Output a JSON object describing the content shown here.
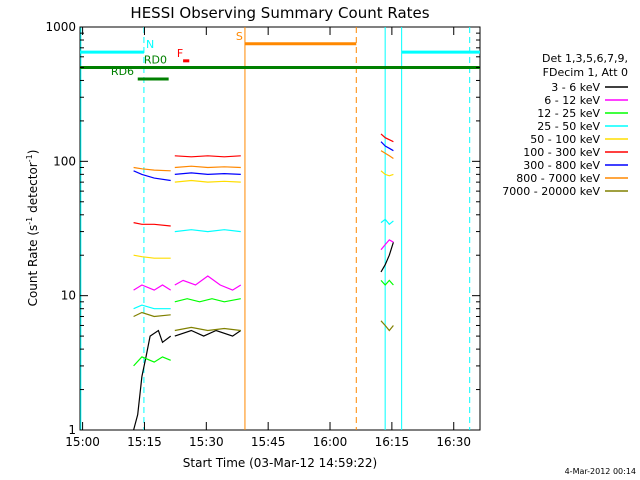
{
  "chart_data": {
    "type": "line",
    "title": "HESSI Observing Summary Count Rates",
    "xlabel": "Start Time (03-Mar-12 14:59:22)",
    "ylabel_main": "Count Rate (s",
    "ylabel_sup1": "-1",
    "ylabel_mid": " detector",
    "ylabel_sup2": "-1",
    "ylabel_end": ")",
    "yscale": "log",
    "xlim": [
      0,
      97
    ],
    "ylim": [
      1,
      1000
    ],
    "x_ticks": [
      {
        "t": 0.63,
        "label": "15:00"
      },
      {
        "t": 15.63,
        "label": "15:15"
      },
      {
        "t": 30.63,
        "label": "15:30"
      },
      {
        "t": 45.63,
        "label": "15:45"
      },
      {
        "t": 60.63,
        "label": "16:00"
      },
      {
        "t": 75.63,
        "label": "16:15"
      },
      {
        "t": 90.63,
        "label": "16:30"
      }
    ],
    "y_ticks": [
      {
        "v": 1,
        "label": "1"
      },
      {
        "v": 10,
        "label": "10"
      },
      {
        "v": 100,
        "label": "100"
      },
      {
        "v": 1000,
        "label": "1000"
      }
    ],
    "legend": {
      "header1": "Det 1,3,5,6,7,9,",
      "header2": "FDecim 1, Att 0",
      "placement": "right"
    },
    "series": [
      {
        "name": "3 - 6 keV",
        "color": "#000000",
        "seg1": [
          [
            13,
            1
          ],
          [
            14,
            1.3
          ],
          [
            15,
            2.5
          ],
          [
            16,
            3.5
          ],
          [
            17,
            5
          ],
          [
            19,
            5.5
          ],
          [
            20,
            4.5
          ],
          [
            22,
            5
          ]
        ],
        "seg2": [
          [
            23,
            5
          ],
          [
            27,
            5.5
          ],
          [
            30,
            5
          ],
          [
            33,
            5.5
          ],
          [
            37,
            5
          ],
          [
            39,
            5.5
          ]
        ],
        "seg3": [
          [
            73,
            15
          ],
          [
            74,
            17
          ],
          [
            75,
            20
          ],
          [
            76,
            25
          ]
        ]
      },
      {
        "name": "6 - 12 keV",
        "color": "#ff00ff",
        "seg1": [
          [
            13,
            11
          ],
          [
            15,
            12
          ],
          [
            18,
            11
          ],
          [
            20,
            12
          ],
          [
            22,
            11
          ]
        ],
        "seg2": [
          [
            23,
            12
          ],
          [
            25,
            13
          ],
          [
            28,
            12
          ],
          [
            31,
            14
          ],
          [
            34,
            12
          ],
          [
            37,
            11
          ],
          [
            39,
            12
          ]
        ],
        "seg3": [
          [
            73,
            22
          ],
          [
            74,
            24
          ],
          [
            75,
            26
          ],
          [
            76,
            25
          ]
        ]
      },
      {
        "name": "12 - 25 keV",
        "color": "#00ff00",
        "seg1": [
          [
            13,
            3
          ],
          [
            15,
            3.5
          ],
          [
            18,
            3.2
          ],
          [
            20,
            3.5
          ],
          [
            22,
            3.3
          ]
        ],
        "seg2": [
          [
            23,
            9
          ],
          [
            26,
            9.5
          ],
          [
            29,
            9
          ],
          [
            32,
            9.5
          ],
          [
            35,
            9
          ],
          [
            39,
            9.5
          ]
        ],
        "seg3": [
          [
            73,
            13
          ],
          [
            74,
            12
          ],
          [
            75,
            13
          ],
          [
            76,
            12
          ]
        ]
      },
      {
        "name": "25 - 50 keV",
        "color": "#00ffff",
        "seg1": [
          [
            13,
            8
          ],
          [
            15,
            8.5
          ],
          [
            18,
            8
          ],
          [
            22,
            8
          ]
        ],
        "seg2": [
          [
            23,
            30
          ],
          [
            27,
            31
          ],
          [
            31,
            30
          ],
          [
            35,
            31
          ],
          [
            39,
            30
          ]
        ],
        "seg3": [
          [
            73,
            35
          ],
          [
            74,
            37
          ],
          [
            75,
            34
          ],
          [
            76,
            36
          ]
        ]
      },
      {
        "name": "50 - 100 keV",
        "color": "#ffdd00",
        "seg1": [
          [
            13,
            20
          ],
          [
            15,
            19.5
          ],
          [
            18,
            19
          ],
          [
            22,
            19
          ]
        ],
        "seg2": [
          [
            23,
            70
          ],
          [
            27,
            72
          ],
          [
            31,
            70
          ],
          [
            35,
            71
          ],
          [
            39,
            70
          ]
        ],
        "seg3": [
          [
            73,
            85
          ],
          [
            74,
            80
          ],
          [
            75,
            78
          ],
          [
            76,
            80
          ]
        ]
      },
      {
        "name": "100 - 300 keV",
        "color": "#ff0000",
        "seg1": [
          [
            13,
            35
          ],
          [
            15,
            34
          ],
          [
            18,
            34
          ],
          [
            22,
            33
          ]
        ],
        "seg2": [
          [
            23,
            110
          ],
          [
            27,
            108
          ],
          [
            31,
            110
          ],
          [
            35,
            108
          ],
          [
            39,
            110
          ]
        ],
        "seg3": [
          [
            73,
            160
          ],
          [
            74,
            150
          ],
          [
            75,
            145
          ],
          [
            76,
            140
          ]
        ]
      },
      {
        "name": "300 - 800 keV",
        "color": "#0000ff",
        "seg1": [
          [
            13,
            85
          ],
          [
            15,
            80
          ],
          [
            18,
            75
          ],
          [
            22,
            72
          ]
        ],
        "seg2": [
          [
            23,
            80
          ],
          [
            27,
            82
          ],
          [
            31,
            80
          ],
          [
            35,
            81
          ],
          [
            39,
            80
          ]
        ],
        "seg3": [
          [
            73,
            140
          ],
          [
            74,
            130
          ],
          [
            75,
            125
          ],
          [
            76,
            120
          ]
        ]
      },
      {
        "name": "800 - 7000 keV",
        "color": "#ff8800",
        "seg1": [
          [
            13,
            90
          ],
          [
            15,
            88
          ],
          [
            18,
            86
          ],
          [
            22,
            85
          ]
        ],
        "seg2": [
          [
            23,
            90
          ],
          [
            27,
            92
          ],
          [
            31,
            90
          ],
          [
            35,
            91
          ],
          [
            39,
            90
          ]
        ],
        "seg3": [
          [
            73,
            120
          ],
          [
            74,
            115
          ],
          [
            75,
            110
          ],
          [
            76,
            105
          ]
        ]
      },
      {
        "name": "7000 - 20000 keV",
        "color": "#808000",
        "seg1": [
          [
            13,
            7
          ],
          [
            15,
            7.5
          ],
          [
            18,
            7
          ],
          [
            22,
            7.2
          ]
        ],
        "seg2": [
          [
            23,
            5.5
          ],
          [
            27,
            5.8
          ],
          [
            31,
            5.5
          ],
          [
            35,
            5.7
          ],
          [
            39,
            5.5
          ]
        ],
        "seg3": [
          [
            73,
            6.5
          ],
          [
            74,
            6
          ],
          [
            75,
            5.5
          ],
          [
            76,
            6
          ]
        ]
      }
    ],
    "flags": [
      {
        "label": "N",
        "color": "#00ffff",
        "level": 650,
        "start": 0,
        "end": 15.5,
        "label_t": 16
      },
      {
        "label": "N",
        "color": "#00ffff",
        "level": 650,
        "start": 78,
        "end": 97
      },
      {
        "label": "S",
        "color": "#ff8800",
        "level": 750,
        "start": 40,
        "end": 67,
        "label_t": 37.8
      },
      {
        "label": "RD0",
        "color": "#008000",
        "level": 500,
        "start": 0,
        "end": 97,
        "label_t": 15.5
      },
      {
        "label": "RD6",
        "color": "#008000",
        "level": 410,
        "start": 14,
        "end": 21.5,
        "label_t": 7.5
      },
      {
        "label": "F",
        "color": "#ff0000",
        "level": 560,
        "start": 25,
        "end": 26.5,
        "label_t": 23.5
      }
    ],
    "vlines": [
      {
        "t": 0.2,
        "color": "#00ffff",
        "style": "solid"
      },
      {
        "t": 15.5,
        "color": "#00ffff",
        "style": "dashed"
      },
      {
        "t": 40.0,
        "color": "#ff8800",
        "style": "solid"
      },
      {
        "t": 67.0,
        "color": "#ff8800",
        "style": "dashed"
      },
      {
        "t": 74.0,
        "color": "#00ffff",
        "style": "solid"
      },
      {
        "t": 78.0,
        "color": "#00ffff",
        "style": "solid"
      },
      {
        "t": 94.5,
        "color": "#00ffff",
        "style": "dashed"
      }
    ]
  },
  "timestamp": "4-Mar-2012 00:14"
}
